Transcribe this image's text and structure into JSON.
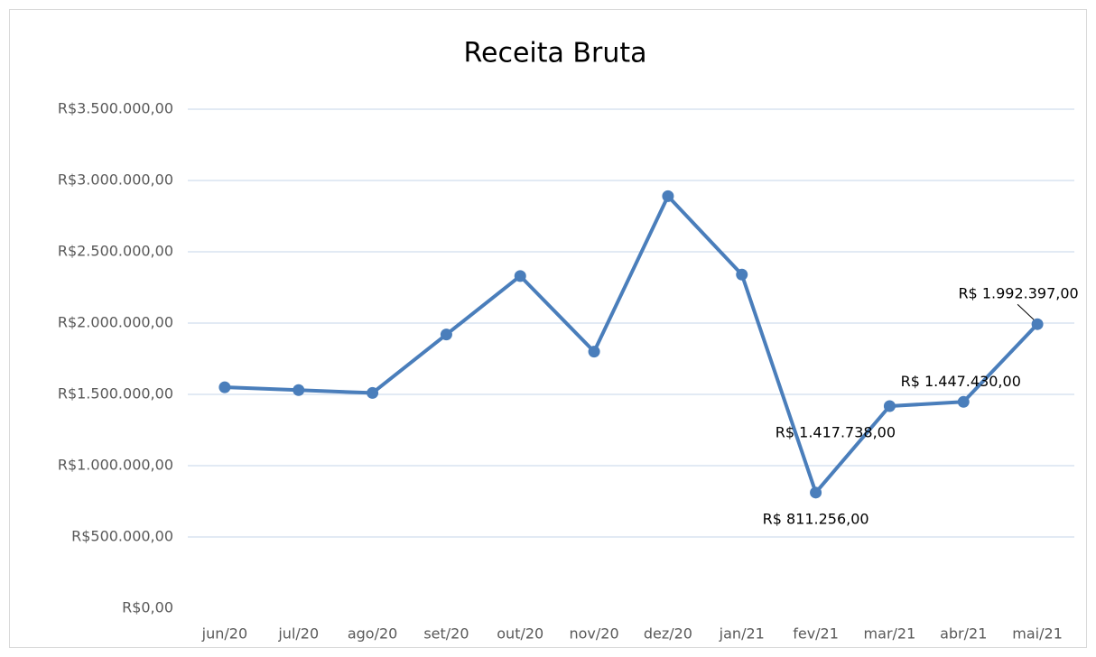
{
  "chart_data": {
    "type": "line",
    "title": "Receita Bruta",
    "categories": [
      "jun/20",
      "jul/20",
      "ago/20",
      "set/20",
      "out/20",
      "nov/20",
      "dez/20",
      "jan/21",
      "fev/21",
      "mar/21",
      "abr/21",
      "mai/21"
    ],
    "series": [
      {
        "name": "Receita Bruta",
        "color": "#4a7ebb",
        "values": [
          1550000,
          1530000,
          1510000,
          1920000,
          2330000,
          1800000,
          2890000,
          2340000,
          811256,
          1417738,
          1447430,
          1992397
        ],
        "value_labels": [
          null,
          null,
          null,
          null,
          null,
          null,
          null,
          null,
          "R$ 811.256,00",
          "R$ 1.417.738,00",
          "R$ 1.447.430,00",
          "R$ 1.992.397,00"
        ]
      }
    ],
    "ylim": [
      0,
      3500000
    ],
    "yticks": [
      {
        "value": 0,
        "label": "R$0,00"
      },
      {
        "value": 500000,
        "label": "R$500.000,00"
      },
      {
        "value": 1000000,
        "label": "R$1.000.000,00"
      },
      {
        "value": 1500000,
        "label": "R$1.500.000,00"
      },
      {
        "value": 2000000,
        "label": "R$2.000.000,00"
      },
      {
        "value": 2500000,
        "label": "R$2.500.000,00"
      },
      {
        "value": 3000000,
        "label": "R$3.000.000,00"
      },
      {
        "value": 3500000,
        "label": "R$3.500.000,00"
      }
    ],
    "grid": true
  }
}
